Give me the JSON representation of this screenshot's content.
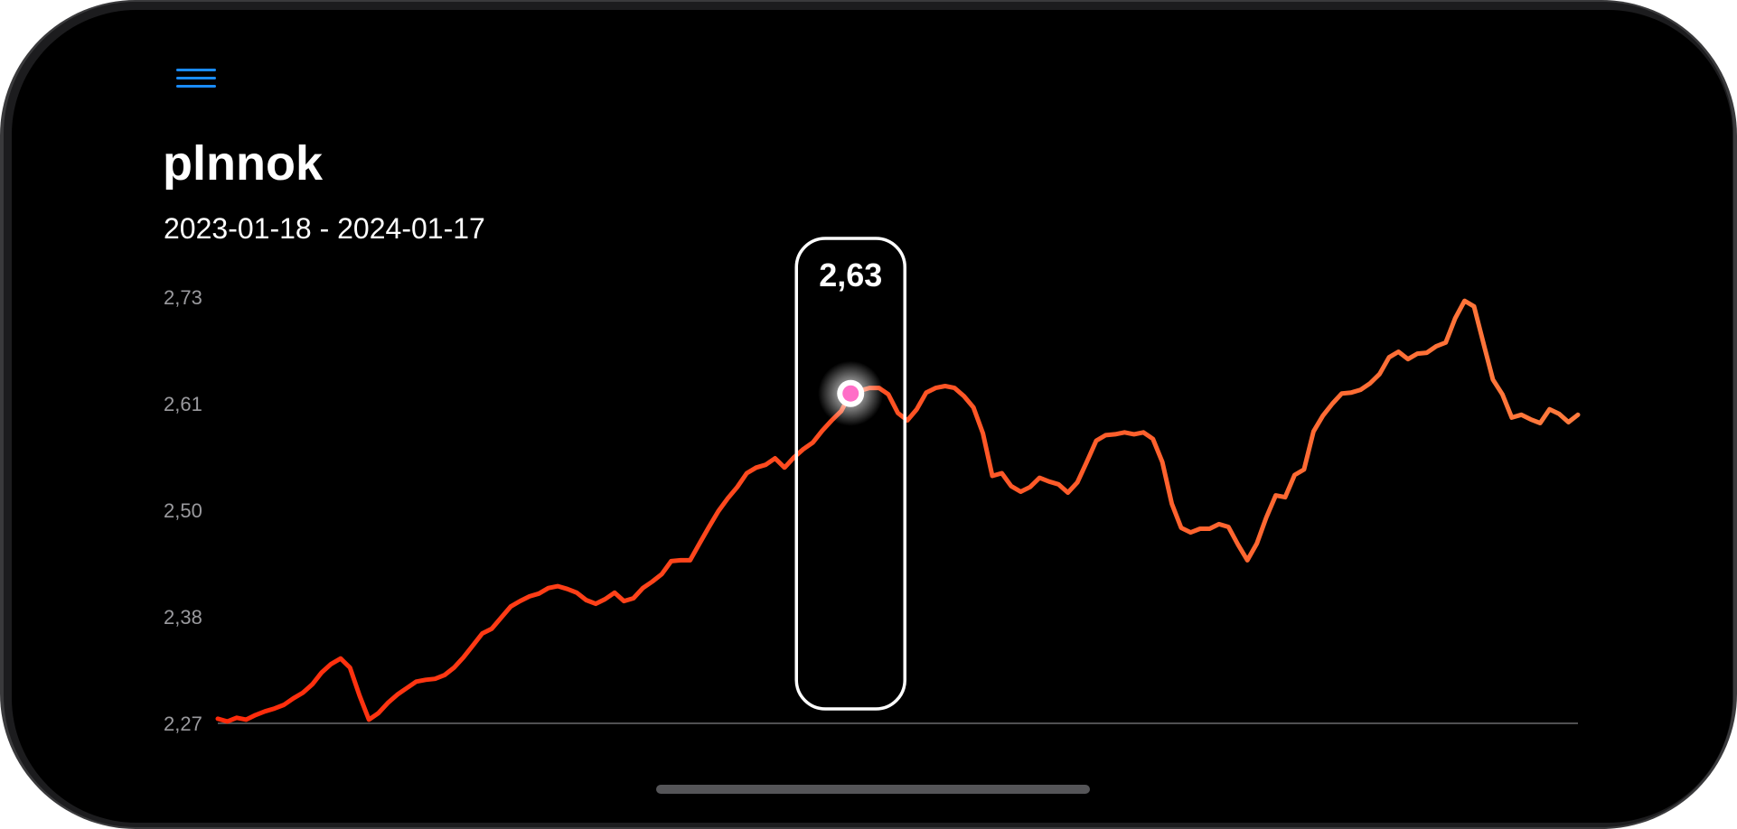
{
  "app": {
    "title": "plnnok",
    "date_range": "2023-01-18 - 2024-01-17"
  },
  "menu": {
    "icon": "hamburger-menu-icon"
  },
  "colors": {
    "background": "#000000",
    "accent": "#1a8cff",
    "line_start": "#ff2a0a",
    "line_end": "#ff7a3d",
    "selection_dot": "#ff6ec7",
    "label": "#9a9a9e"
  },
  "tooltip": {
    "value": "2,63"
  },
  "chart_data": {
    "type": "line",
    "y_ticks": [
      "2,73",
      "2,61",
      "2,50",
      "2,38",
      "2,27"
    ],
    "ylim": [
      2.27,
      2.73
    ],
    "x_range": [
      "2023-01-18",
      "2024-01-17"
    ],
    "selected_index": 67,
    "values": [
      2.275,
      2.272,
      2.276,
      2.274,
      2.279,
      2.283,
      2.286,
      2.29,
      2.297,
      2.303,
      2.312,
      2.325,
      2.334,
      2.34,
      2.33,
      2.3,
      2.274,
      2.281,
      2.292,
      2.301,
      2.308,
      2.315,
      2.317,
      2.318,
      2.322,
      2.33,
      2.341,
      2.354,
      2.367,
      2.372,
      2.384,
      2.396,
      2.402,
      2.407,
      2.41,
      2.416,
      2.418,
      2.415,
      2.411,
      2.403,
      2.399,
      2.404,
      2.411,
      2.402,
      2.405,
      2.416,
      2.423,
      2.431,
      2.445,
      2.446,
      2.446,
      2.464,
      2.482,
      2.499,
      2.513,
      2.525,
      2.54,
      2.546,
      2.549,
      2.556,
      2.546,
      2.557,
      2.566,
      2.573,
      2.586,
      2.597,
      2.607,
      2.626,
      2.629,
      2.632,
      2.632,
      2.625,
      2.605,
      2.597,
      2.609,
      2.627,
      2.632,
      2.634,
      2.632,
      2.623,
      2.611,
      2.583,
      2.537,
      2.54,
      2.526,
      2.52,
      2.525,
      2.535,
      2.531,
      2.528,
      2.519,
      2.53,
      2.552,
      2.575,
      2.581,
      2.582,
      2.584,
      2.582,
      2.584,
      2.577,
      2.552,
      2.507,
      2.481,
      2.476,
      2.48,
      2.48,
      2.485,
      2.482,
      2.463,
      2.446,
      2.464,
      2.492,
      2.516,
      2.514,
      2.538,
      2.544,
      2.585,
      2.602,
      2.615,
      2.626,
      2.627,
      2.63,
      2.637,
      2.647,
      2.665,
      2.671,
      2.663,
      2.669,
      2.67,
      2.677,
      2.681,
      2.707,
      2.726,
      2.72,
      2.68,
      2.641,
      2.625,
      2.6,
      2.603,
      2.598,
      2.594,
      2.609,
      2.604,
      2.595,
      2.603
    ]
  }
}
